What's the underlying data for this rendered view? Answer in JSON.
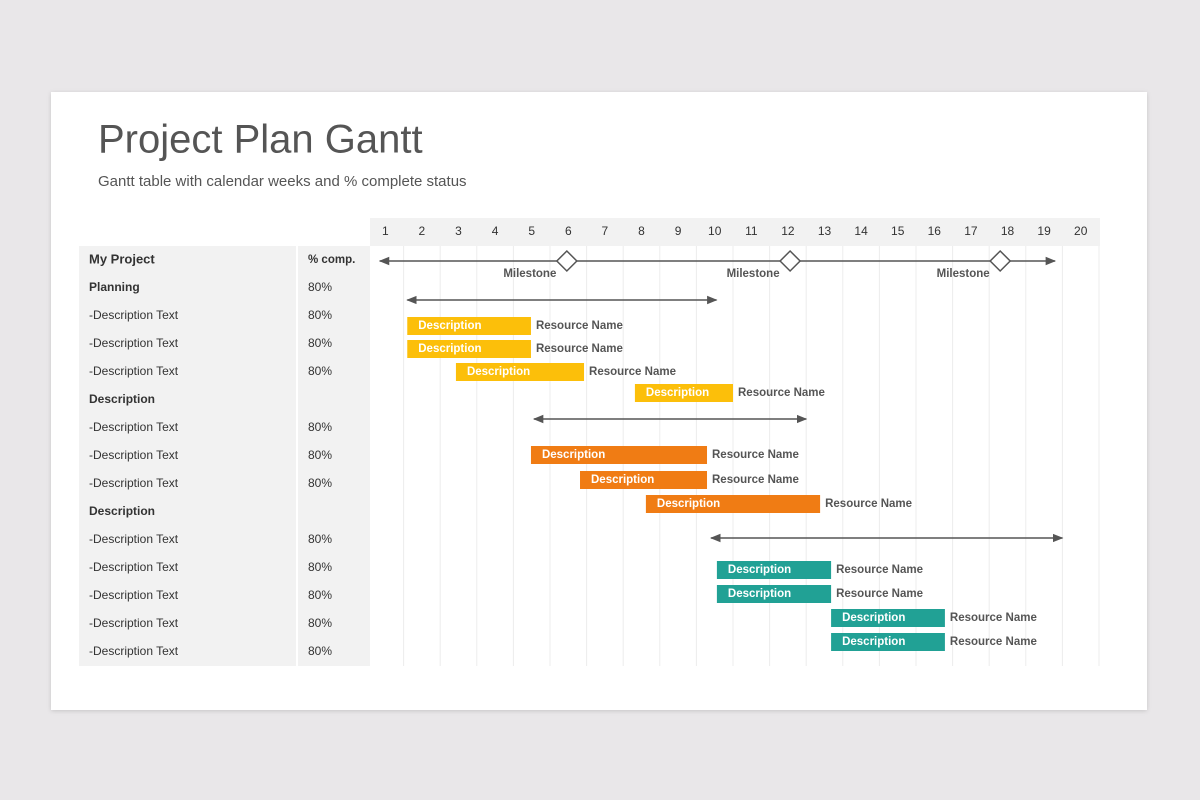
{
  "header": {
    "title": "Project Plan Gantt",
    "subtitle": "Gantt table with calendar weeks and % complete status"
  },
  "table": {
    "columns": [
      "My Project",
      "% comp."
    ],
    "rows": [
      {
        "label": "Planning",
        "pct": "80%",
        "group": true
      },
      {
        "label": "-Description Text",
        "pct": "80%"
      },
      {
        "label": "-Description Text",
        "pct": "80%"
      },
      {
        "label": "-Description Text",
        "pct": "80%"
      },
      {
        "label": "Description",
        "group": true
      },
      {
        "label": "-Description Text",
        "pct": "80%"
      },
      {
        "label": "-Description Text",
        "pct": "80%"
      },
      {
        "label": "-Description Text",
        "pct": "80%"
      },
      {
        "label": "Description",
        "group": true
      },
      {
        "label": "-Description Text",
        "pct": "80%"
      },
      {
        "label": "-Description Text",
        "pct": "80%"
      },
      {
        "label": "-Description Text",
        "pct": "80%"
      },
      {
        "label": "-Description Text",
        "pct": "80%"
      },
      {
        "label": "-Description Text",
        "pct": "80%"
      }
    ]
  },
  "timeline": {
    "weeks": [
      1,
      2,
      3,
      4,
      5,
      6,
      7,
      8,
      9,
      10,
      11,
      12,
      13,
      14,
      15,
      16,
      17,
      18,
      19,
      20
    ],
    "milestones": {
      "start": 0.35,
      "end": 18.8,
      "points": [
        {
          "week": 5.46,
          "label": "Milestone"
        },
        {
          "week": 11.56,
          "label": "Milestone"
        },
        {
          "week": 17.3,
          "label": "Milestone"
        }
      ]
    },
    "groups": [
      {
        "color": "#fcbf0a",
        "start": 1.1,
        "end": 9.55,
        "bars": [
          {
            "start": 1.1,
            "end": 4.48,
            "label": "Description",
            "resource": "Resource Name"
          },
          {
            "start": 1.1,
            "end": 4.48,
            "label": "Description",
            "resource": "Resource Name"
          },
          {
            "start": 2.43,
            "end": 5.93,
            "label": "Description",
            "resource": "Resource Name"
          },
          {
            "start": 7.32,
            "end": 10.0,
            "label": "Description",
            "resource": "Resource Name"
          }
        ]
      },
      {
        "color": "#f07c14",
        "start": 4.56,
        "end": 12.0,
        "bars": [
          {
            "start": 4.48,
            "end": 9.29,
            "label": "Description",
            "resource": "Resource Name"
          },
          {
            "start": 5.82,
            "end": 9.29,
            "label": "Description",
            "resource": "Resource Name"
          },
          {
            "start": 7.62,
            "end": 12.38,
            "label": "Description",
            "resource": "Resource Name"
          }
        ]
      },
      {
        "color": "#21a195",
        "start": 9.4,
        "end": 19.0,
        "bars": [
          {
            "start": 9.56,
            "end": 12.68,
            "label": "Description",
            "resource": "Resource Name"
          },
          {
            "start": 9.56,
            "end": 12.68,
            "label": "Description",
            "resource": "Resource Name"
          },
          {
            "start": 12.68,
            "end": 15.79,
            "label": "Description",
            "resource": "Resource Name"
          },
          {
            "start": 12.68,
            "end": 15.79,
            "label": "Description",
            "resource": "Resource Name"
          }
        ]
      }
    ]
  }
}
